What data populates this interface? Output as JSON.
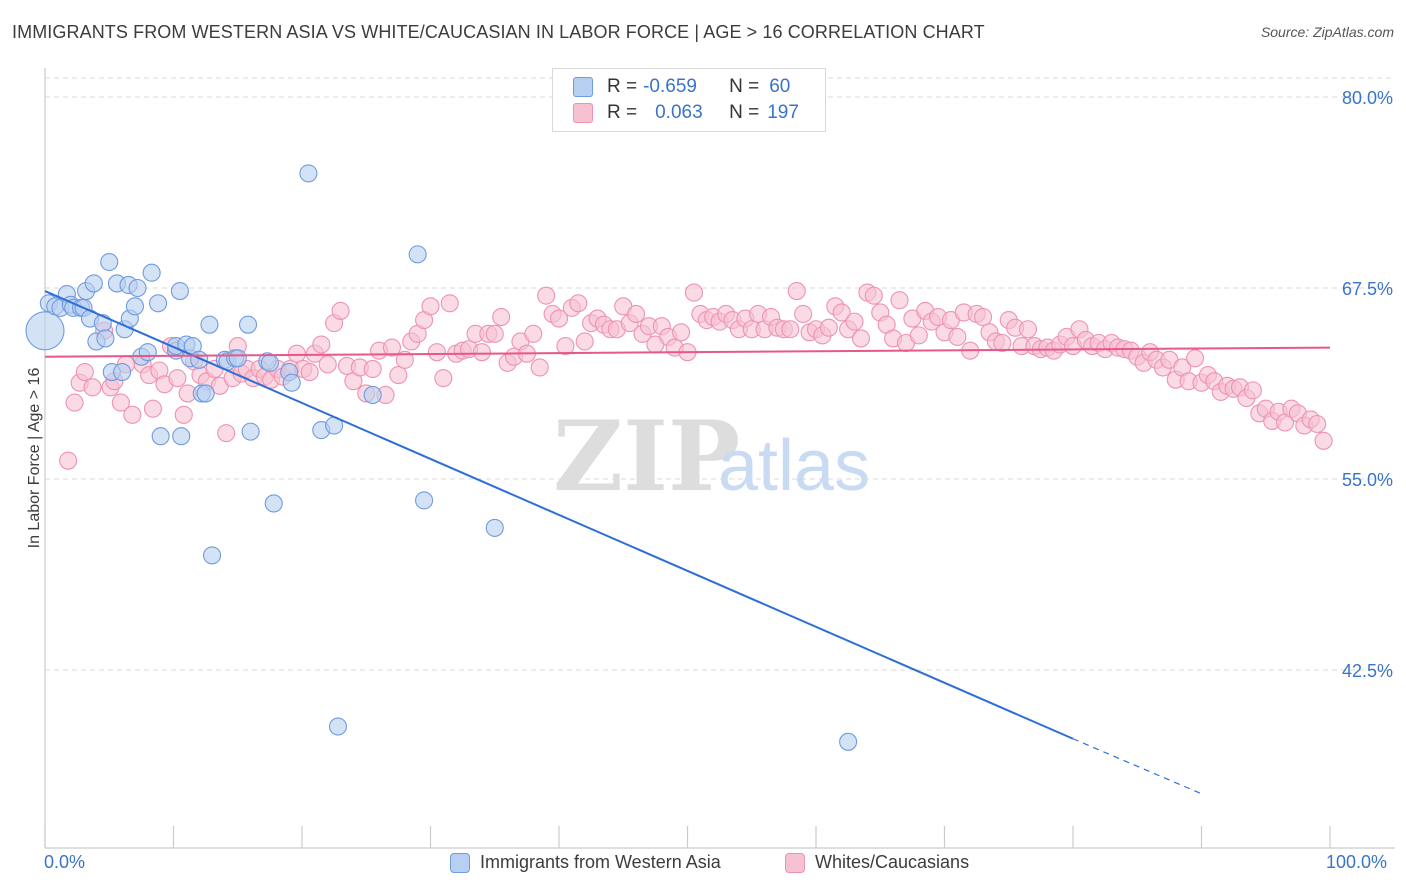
{
  "title": "IMMIGRANTS FROM WESTERN ASIA VS WHITE/CAUCASIAN IN LABOR FORCE | AGE > 16 CORRELATION CHART",
  "source": "Source: ZipAtlas.com",
  "watermark": {
    "zip": "ZIP",
    "atlas": "atlas"
  },
  "colors": {
    "blue_fill": "#b7cff0",
    "blue_stroke": "#6f9be0",
    "blue_line": "#2e6fd6",
    "pink_fill": "#f6c2d2",
    "pink_stroke": "#ee93b1",
    "pink_line": "#e8578a",
    "axis_text": "#3a74c9",
    "grid": "#d9d9d9"
  },
  "stats": [
    {
      "r_label": "R =",
      "r_value": "-0.659",
      "n_label": "N =",
      "n_value": "60",
      "color": "#b7cff0"
    },
    {
      "r_label": "R =",
      "r_value": "0.063",
      "n_label": "N =",
      "n_value": "197",
      "color": "#f6c2d2"
    }
  ],
  "chart_data": {
    "type": "scatter",
    "title": "IMMIGRANTS FROM WESTERN ASIA VS WHITE/CAUCASIAN IN LABOR FORCE | AGE > 16 CORRELATION CHART",
    "xlabel": "",
    "ylabel": "In Labor Force | Age > 16",
    "x_tick_labels": [
      "0.0%",
      "100.0%"
    ],
    "y_tick_labels": [
      "80.0%",
      "67.5%",
      "55.0%",
      "42.5%"
    ],
    "y_ticks": [
      80.0,
      67.5,
      55.0,
      42.5
    ],
    "xlim": [
      0,
      100
    ],
    "ylim": [
      34.0,
      81.5
    ],
    "grid": true,
    "legend_position": "bottom",
    "series": [
      {
        "name": "Immigrants from Western Asia",
        "color": "#6f9be0",
        "trend": {
          "x0": 0,
          "y0": 67.3,
          "x1": 80,
          "y1": 38.0,
          "dash_to_x": 90,
          "dash_to_y": 34.4
        },
        "points": [
          [
            0,
            64.7
          ],
          [
            0.3,
            66.5
          ],
          [
            0.8,
            66.3
          ],
          [
            1.2,
            66.2
          ],
          [
            1.7,
            67.1
          ],
          [
            2.0,
            66.4
          ],
          [
            2.2,
            66.2
          ],
          [
            2.8,
            66.2
          ],
          [
            3.0,
            66.2
          ],
          [
            3.2,
            67.3
          ],
          [
            3.5,
            65.5
          ],
          [
            3.8,
            67.8
          ],
          [
            4.0,
            64.0
          ],
          [
            4.5,
            65.2
          ],
          [
            4.7,
            64.2
          ],
          [
            5.0,
            69.2
          ],
          [
            5.2,
            62.0
          ],
          [
            5.6,
            67.8
          ],
          [
            6.0,
            62.0
          ],
          [
            6.2,
            64.8
          ],
          [
            6.5,
            67.7
          ],
          [
            6.6,
            65.5
          ],
          [
            7.0,
            66.3
          ],
          [
            7.2,
            67.5
          ],
          [
            7.5,
            63.0
          ],
          [
            8.0,
            63.3
          ],
          [
            8.3,
            68.5
          ],
          [
            8.8,
            66.5
          ],
          [
            9.0,
            57.8
          ],
          [
            10.2,
            63.4
          ],
          [
            10.2,
            63.7
          ],
          [
            10.5,
            67.3
          ],
          [
            10.6,
            57.8
          ],
          [
            11.0,
            63.8
          ],
          [
            11.3,
            62.9
          ],
          [
            11.5,
            63.7
          ],
          [
            12.0,
            62.8
          ],
          [
            12.2,
            60.6
          ],
          [
            12.5,
            60.6
          ],
          [
            12.8,
            65.1
          ],
          [
            13.0,
            50.0
          ],
          [
            14.0,
            62.8
          ],
          [
            14.2,
            62.7
          ],
          [
            14.8,
            62.9
          ],
          [
            15.0,
            62.9
          ],
          [
            15.8,
            65.1
          ],
          [
            16.0,
            58.1
          ],
          [
            17.3,
            62.7
          ],
          [
            17.5,
            62.6
          ],
          [
            17.8,
            53.4
          ],
          [
            19.0,
            62.0
          ],
          [
            19.2,
            61.3
          ],
          [
            20.5,
            75.0
          ],
          [
            21.5,
            58.2
          ],
          [
            22.5,
            58.5
          ],
          [
            22.8,
            38.8
          ],
          [
            25.5,
            60.5
          ],
          [
            29.0,
            69.7
          ],
          [
            29.5,
            53.6
          ],
          [
            35.0,
            51.8
          ],
          [
            62.5,
            37.8
          ]
        ]
      },
      {
        "name": "Whites/Caucasians",
        "color": "#ee93b1",
        "trend": {
          "x0": 0,
          "y0": 63.0,
          "x1": 100,
          "y1": 63.6
        },
        "points": [
          [
            1.8,
            56.2
          ],
          [
            2.3,
            60.0
          ],
          [
            2.7,
            61.3
          ],
          [
            3.1,
            62.0
          ],
          [
            3.7,
            61.0
          ],
          [
            4.6,
            64.7
          ],
          [
            5.1,
            61.0
          ],
          [
            5.4,
            61.4
          ],
          [
            5.9,
            60.0
          ],
          [
            6.3,
            62.5
          ],
          [
            6.8,
            59.2
          ],
          [
            7.6,
            62.5
          ],
          [
            8.1,
            61.8
          ],
          [
            8.4,
            59.6
          ],
          [
            8.9,
            62.1
          ],
          [
            9.3,
            61.2
          ],
          [
            9.8,
            63.7
          ],
          [
            10.3,
            61.6
          ],
          [
            10.8,
            59.2
          ],
          [
            11.1,
            60.6
          ],
          [
            11.6,
            62.7
          ],
          [
            12.1,
            61.8
          ],
          [
            12.6,
            61.4
          ],
          [
            13.2,
            62.2
          ],
          [
            13.6,
            61.1
          ],
          [
            14.1,
            58.0
          ],
          [
            14.6,
            61.6
          ],
          [
            15.0,
            63.7
          ],
          [
            15.3,
            61.9
          ],
          [
            15.7,
            62.2
          ],
          [
            16.2,
            61.6
          ],
          [
            16.7,
            62.2
          ],
          [
            17.1,
            61.7
          ],
          [
            17.6,
            61.5
          ],
          [
            18.1,
            62.2
          ],
          [
            18.5,
            61.7
          ],
          [
            19.1,
            62.2
          ],
          [
            19.6,
            63.2
          ],
          [
            20.1,
            62.2
          ],
          [
            20.6,
            62.0
          ],
          [
            21.0,
            63.2
          ],
          [
            21.5,
            63.8
          ],
          [
            22.0,
            62.5
          ],
          [
            22.5,
            65.2
          ],
          [
            23.0,
            66.0
          ],
          [
            23.5,
            62.4
          ],
          [
            24.0,
            61.4
          ],
          [
            24.5,
            62.3
          ],
          [
            25.0,
            60.6
          ],
          [
            25.5,
            62.2
          ],
          [
            26.0,
            63.4
          ],
          [
            26.5,
            60.5
          ],
          [
            27.0,
            63.6
          ],
          [
            27.5,
            61.8
          ],
          [
            28.0,
            62.8
          ],
          [
            28.5,
            64.0
          ],
          [
            29.0,
            64.5
          ],
          [
            29.5,
            65.4
          ],
          [
            30.0,
            66.3
          ],
          [
            30.5,
            63.3
          ],
          [
            31.0,
            61.6
          ],
          [
            31.5,
            66.5
          ],
          [
            32.0,
            63.2
          ],
          [
            32.5,
            63.4
          ],
          [
            33.0,
            63.5
          ],
          [
            33.5,
            64.5
          ],
          [
            34.0,
            63.3
          ],
          [
            34.5,
            64.5
          ],
          [
            35.0,
            64.5
          ],
          [
            35.5,
            65.6
          ],
          [
            36.0,
            62.6
          ],
          [
            36.5,
            63.0
          ],
          [
            37.0,
            64.0
          ],
          [
            37.5,
            63.2
          ],
          [
            38.0,
            64.5
          ],
          [
            38.5,
            62.3
          ],
          [
            39.0,
            67.0
          ],
          [
            39.5,
            65.8
          ],
          [
            40.0,
            65.5
          ],
          [
            40.5,
            63.7
          ],
          [
            41.0,
            66.2
          ],
          [
            41.5,
            66.5
          ],
          [
            42.0,
            64.0
          ],
          [
            42.5,
            65.2
          ],
          [
            43.0,
            65.5
          ],
          [
            43.5,
            65.1
          ],
          [
            44.0,
            64.8
          ],
          [
            44.5,
            64.8
          ],
          [
            45.0,
            66.3
          ],
          [
            45.5,
            65.2
          ],
          [
            46.0,
            65.8
          ],
          [
            46.5,
            64.5
          ],
          [
            47.0,
            65.0
          ],
          [
            47.5,
            63.8
          ],
          [
            48.0,
            65.0
          ],
          [
            48.5,
            64.3
          ],
          [
            49.0,
            63.6
          ],
          [
            49.5,
            64.6
          ],
          [
            50.0,
            63.3
          ],
          [
            50.5,
            67.2
          ],
          [
            51.0,
            65.8
          ],
          [
            51.5,
            65.4
          ],
          [
            52.0,
            65.6
          ],
          [
            52.5,
            65.3
          ],
          [
            53.0,
            65.8
          ],
          [
            53.5,
            65.4
          ],
          [
            54.0,
            64.8
          ],
          [
            54.5,
            65.5
          ],
          [
            55.0,
            64.8
          ],
          [
            55.5,
            65.8
          ],
          [
            56.0,
            64.8
          ],
          [
            56.5,
            65.6
          ],
          [
            57.0,
            64.9
          ],
          [
            57.5,
            64.8
          ],
          [
            58.0,
            64.8
          ],
          [
            58.5,
            67.3
          ],
          [
            59.0,
            65.8
          ],
          [
            59.5,
            64.6
          ],
          [
            60.0,
            64.8
          ],
          [
            60.5,
            64.4
          ],
          [
            61.0,
            64.9
          ],
          [
            61.5,
            66.3
          ],
          [
            62.0,
            65.9
          ],
          [
            62.5,
            64.8
          ],
          [
            63.0,
            65.3
          ],
          [
            63.5,
            64.2
          ],
          [
            64.0,
            67.2
          ],
          [
            64.5,
            67.0
          ],
          [
            65.0,
            65.9
          ],
          [
            65.5,
            65.1
          ],
          [
            66.0,
            64.2
          ],
          [
            66.5,
            66.7
          ],
          [
            67.0,
            63.9
          ],
          [
            67.5,
            65.5
          ],
          [
            68.0,
            64.4
          ],
          [
            68.5,
            66.0
          ],
          [
            69.0,
            65.3
          ],
          [
            69.5,
            65.6
          ],
          [
            70.0,
            64.6
          ],
          [
            70.5,
            65.4
          ],
          [
            71.0,
            64.3
          ],
          [
            71.5,
            65.9
          ],
          [
            72.0,
            63.4
          ],
          [
            72.5,
            65.8
          ],
          [
            73.0,
            65.6
          ],
          [
            73.5,
            64.6
          ],
          [
            74.0,
            64.0
          ],
          [
            74.5,
            63.9
          ],
          [
            75.0,
            65.4
          ],
          [
            75.5,
            64.9
          ],
          [
            76.0,
            63.7
          ],
          [
            76.5,
            64.8
          ],
          [
            77.0,
            63.7
          ],
          [
            77.5,
            63.5
          ],
          [
            78.0,
            63.6
          ],
          [
            78.5,
            63.4
          ],
          [
            79.0,
            63.8
          ],
          [
            79.5,
            64.3
          ],
          [
            80.0,
            63.7
          ],
          [
            80.5,
            64.8
          ],
          [
            81.0,
            64.1
          ],
          [
            81.5,
            63.7
          ],
          [
            82.0,
            63.9
          ],
          [
            82.5,
            63.5
          ],
          [
            83.0,
            63.9
          ],
          [
            83.5,
            63.6
          ],
          [
            84.0,
            63.5
          ],
          [
            84.5,
            63.4
          ],
          [
            85.0,
            63.0
          ],
          [
            85.5,
            62.6
          ],
          [
            86.0,
            63.3
          ],
          [
            86.5,
            62.8
          ],
          [
            87.0,
            62.3
          ],
          [
            87.5,
            62.8
          ],
          [
            88.0,
            61.5
          ],
          [
            88.5,
            62.3
          ],
          [
            89.0,
            61.4
          ],
          [
            89.5,
            62.9
          ],
          [
            90.0,
            61.3
          ],
          [
            90.5,
            61.8
          ],
          [
            91.0,
            61.4
          ],
          [
            91.5,
            60.7
          ],
          [
            92.0,
            61.1
          ],
          [
            92.5,
            60.9
          ],
          [
            93.0,
            61.0
          ],
          [
            93.5,
            60.3
          ],
          [
            94.0,
            60.8
          ],
          [
            94.5,
            59.3
          ],
          [
            95.0,
            59.6
          ],
          [
            95.5,
            58.8
          ],
          [
            96.0,
            59.4
          ],
          [
            96.5,
            58.7
          ],
          [
            97.0,
            59.6
          ],
          [
            97.5,
            59.3
          ],
          [
            98.0,
            58.5
          ],
          [
            98.5,
            58.9
          ],
          [
            99.0,
            58.6
          ],
          [
            99.5,
            57.5
          ]
        ]
      }
    ]
  }
}
